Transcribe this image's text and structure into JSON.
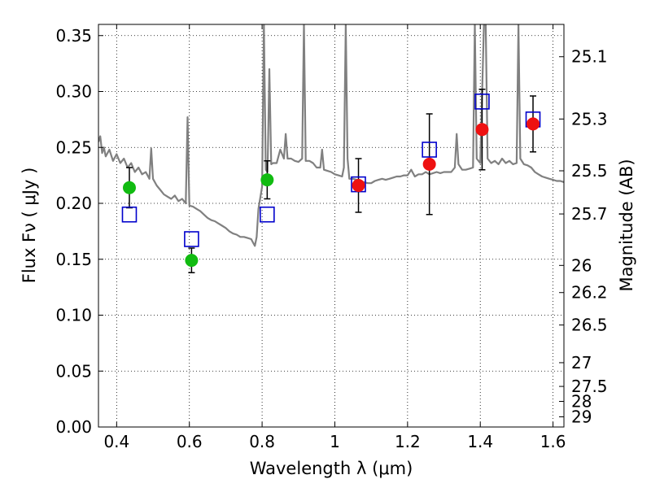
{
  "chart_data": {
    "type": "scatter",
    "xlabel": "Wavelength  λ (μm)",
    "ylabel": "Flux  Fν  ( μJy )",
    "y2label": "Magnitude (AB)",
    "xlim": [
      0.35,
      1.63
    ],
    "ylim": [
      0.0,
      0.36
    ],
    "xticks": [
      0.4,
      0.6,
      0.8,
      1.0,
      1.2,
      1.4,
      1.6
    ],
    "xtick_labels": [
      "0.4",
      "0.6",
      "0.8",
      "1",
      "1.2",
      "1.4",
      "1.6"
    ],
    "yticks": [
      0.0,
      0.05,
      0.1,
      0.15,
      0.2,
      0.25,
      0.3,
      0.35
    ],
    "ytick_labels": [
      "0.00",
      "0.05",
      "0.10",
      "0.15",
      "0.20",
      "0.25",
      "0.30",
      "0.35"
    ],
    "y2ticks": [
      {
        "label": "25.1",
        "flux": 0.3311
      },
      {
        "label": "25.3",
        "flux": 0.2754
      },
      {
        "label": "25.5",
        "flux": 0.2291
      },
      {
        "label": "25.7",
        "flux": 0.1905
      },
      {
        "label": "26",
        "flux": 0.1445
      },
      {
        "label": "26.2",
        "flux": 0.1202
      },
      {
        "label": "26.5",
        "flux": 0.0912
      },
      {
        "label": "27",
        "flux": 0.0575
      },
      {
        "label": "27.5",
        "flux": 0.0363
      },
      {
        "label": "28",
        "flux": 0.0229
      },
      {
        "label": "29",
        "flux": 0.0091
      }
    ],
    "grid": true,
    "colors": {
      "model": "#808080",
      "optical": "#11bb11",
      "infrared": "#ee1111",
      "model_band": "#0000cc",
      "errorbar": "#000000"
    },
    "series": [
      {
        "points": [
          {
            "x": 0.435,
            "y": 0.214,
            "err": 0.018
          },
          {
            "x": 0.606,
            "y": 0.149,
            "err": 0.011
          },
          {
            "x": 0.814,
            "y": 0.221,
            "err": 0.017
          }
        ]
      },
      {
        "points": [
          {
            "x": 1.065,
            "y": 0.216,
            "err": 0.024
          },
          {
            "x": 1.26,
            "y": 0.235,
            "err": 0.045
          },
          {
            "x": 1.405,
            "y": 0.266,
            "err": 0.036
          },
          {
            "x": 1.545,
            "y": 0.271,
            "err": 0.025
          }
        ]
      },
      {
        "points": [
          {
            "x": 0.435,
            "y": 0.19
          },
          {
            "x": 0.606,
            "y": 0.168
          },
          {
            "x": 0.814,
            "y": 0.19
          },
          {
            "x": 1.065,
            "y": 0.217
          },
          {
            "x": 1.26,
            "y": 0.248
          },
          {
            "x": 1.405,
            "y": 0.291
          },
          {
            "x": 1.545,
            "y": 0.275
          }
        ]
      },
      {
        "type": "line",
        "points": [
          [
            0.35,
            0.255
          ],
          [
            0.355,
            0.26
          ],
          [
            0.36,
            0.245
          ],
          [
            0.365,
            0.25
          ],
          [
            0.37,
            0.242
          ],
          [
            0.38,
            0.248
          ],
          [
            0.39,
            0.238
          ],
          [
            0.4,
            0.244
          ],
          [
            0.41,
            0.236
          ],
          [
            0.42,
            0.24
          ],
          [
            0.43,
            0.232
          ],
          [
            0.44,
            0.236
          ],
          [
            0.45,
            0.228
          ],
          [
            0.46,
            0.232
          ],
          [
            0.47,
            0.226
          ],
          [
            0.48,
            0.228
          ],
          [
            0.49,
            0.222
          ],
          [
            0.495,
            0.249
          ],
          [
            0.5,
            0.222
          ],
          [
            0.51,
            0.216
          ],
          [
            0.52,
            0.212
          ],
          [
            0.53,
            0.208
          ],
          [
            0.54,
            0.206
          ],
          [
            0.55,
            0.204
          ],
          [
            0.56,
            0.207
          ],
          [
            0.57,
            0.202
          ],
          [
            0.58,
            0.204
          ],
          [
            0.59,
            0.2
          ],
          [
            0.595,
            0.277
          ],
          [
            0.6,
            0.198
          ],
          [
            0.61,
            0.197
          ],
          [
            0.62,
            0.195
          ],
          [
            0.63,
            0.193
          ],
          [
            0.64,
            0.19
          ],
          [
            0.65,
            0.187
          ],
          [
            0.66,
            0.185
          ],
          [
            0.67,
            0.184
          ],
          [
            0.68,
            0.182
          ],
          [
            0.69,
            0.18
          ],
          [
            0.7,
            0.178
          ],
          [
            0.71,
            0.175
          ],
          [
            0.72,
            0.173
          ],
          [
            0.73,
            0.172
          ],
          [
            0.74,
            0.17
          ],
          [
            0.75,
            0.17
          ],
          [
            0.76,
            0.169
          ],
          [
            0.77,
            0.168
          ],
          [
            0.775,
            0.165
          ],
          [
            0.78,
            0.162
          ],
          [
            0.785,
            0.17
          ],
          [
            0.79,
            0.195
          ],
          [
            0.8,
            0.215
          ],
          [
            0.805,
            0.36
          ],
          [
            0.81,
            0.23
          ],
          [
            0.815,
            0.228
          ],
          [
            0.82,
            0.32
          ],
          [
            0.825,
            0.235
          ],
          [
            0.83,
            0.236
          ],
          [
            0.84,
            0.236
          ],
          [
            0.85,
            0.248
          ],
          [
            0.86,
            0.24
          ],
          [
            0.865,
            0.262
          ],
          [
            0.87,
            0.24
          ],
          [
            0.88,
            0.24
          ],
          [
            0.89,
            0.238
          ],
          [
            0.9,
            0.237
          ],
          [
            0.91,
            0.24
          ],
          [
            0.915,
            0.36
          ],
          [
            0.92,
            0.238
          ],
          [
            0.93,
            0.238
          ],
          [
            0.94,
            0.236
          ],
          [
            0.95,
            0.232
          ],
          [
            0.96,
            0.232
          ],
          [
            0.965,
            0.248
          ],
          [
            0.97,
            0.23
          ],
          [
            0.98,
            0.229
          ],
          [
            0.99,
            0.228
          ],
          [
            1.0,
            0.226
          ],
          [
            1.01,
            0.225
          ],
          [
            1.02,
            0.224
          ],
          [
            1.025,
            0.232
          ],
          [
            1.03,
            0.36
          ],
          [
            1.035,
            0.24
          ],
          [
            1.04,
            0.222
          ],
          [
            1.05,
            0.222
          ],
          [
            1.06,
            0.221
          ],
          [
            1.07,
            0.22
          ],
          [
            1.08,
            0.219
          ],
          [
            1.09,
            0.218
          ],
          [
            1.1,
            0.218
          ],
          [
            1.11,
            0.22
          ],
          [
            1.12,
            0.221
          ],
          [
            1.13,
            0.222
          ],
          [
            1.14,
            0.221
          ],
          [
            1.15,
            0.222
          ],
          [
            1.16,
            0.223
          ],
          [
            1.17,
            0.224
          ],
          [
            1.18,
            0.224
          ],
          [
            1.19,
            0.225
          ],
          [
            1.2,
            0.225
          ],
          [
            1.21,
            0.23
          ],
          [
            1.22,
            0.224
          ],
          [
            1.23,
            0.226
          ],
          [
            1.24,
            0.226
          ],
          [
            1.25,
            0.228
          ],
          [
            1.26,
            0.226
          ],
          [
            1.27,
            0.227
          ],
          [
            1.28,
            0.228
          ],
          [
            1.29,
            0.227
          ],
          [
            1.3,
            0.228
          ],
          [
            1.31,
            0.228
          ],
          [
            1.32,
            0.228
          ],
          [
            1.33,
            0.232
          ],
          [
            1.335,
            0.262
          ],
          [
            1.34,
            0.235
          ],
          [
            1.35,
            0.23
          ],
          [
            1.36,
            0.23
          ],
          [
            1.37,
            0.231
          ],
          [
            1.38,
            0.232
          ],
          [
            1.385,
            0.36
          ],
          [
            1.39,
            0.24
          ],
          [
            1.4,
            0.236
          ],
          [
            1.41,
            0.36
          ],
          [
            1.415,
            0.36
          ],
          [
            1.42,
            0.24
          ],
          [
            1.43,
            0.236
          ],
          [
            1.44,
            0.238
          ],
          [
            1.45,
            0.235
          ],
          [
            1.46,
            0.24
          ],
          [
            1.47,
            0.236
          ],
          [
            1.48,
            0.238
          ],
          [
            1.49,
            0.235
          ],
          [
            1.5,
            0.236
          ],
          [
            1.505,
            0.36
          ],
          [
            1.51,
            0.24
          ],
          [
            1.52,
            0.235
          ],
          [
            1.53,
            0.234
          ],
          [
            1.54,
            0.232
          ],
          [
            1.55,
            0.228
          ],
          [
            1.56,
            0.226
          ],
          [
            1.57,
            0.224
          ],
          [
            1.58,
            0.223
          ],
          [
            1.59,
            0.222
          ],
          [
            1.6,
            0.221
          ],
          [
            1.61,
            0.22
          ],
          [
            1.62,
            0.22
          ],
          [
            1.63,
            0.219
          ]
        ]
      }
    ]
  }
}
